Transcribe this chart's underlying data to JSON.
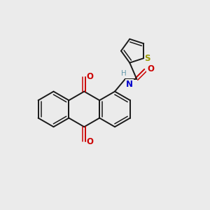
{
  "background_color": "#ebebeb",
  "bond_color": "#1a1a1a",
  "sulfur_color": "#999900",
  "nitrogen_color": "#0000cc",
  "oxygen_color": "#cc0000",
  "hydrogen_color": "#6699aa",
  "figsize": [
    3.0,
    3.0
  ],
  "dpi": 100,
  "xlim": [
    0,
    10
  ],
  "ylim": [
    0,
    10
  ]
}
